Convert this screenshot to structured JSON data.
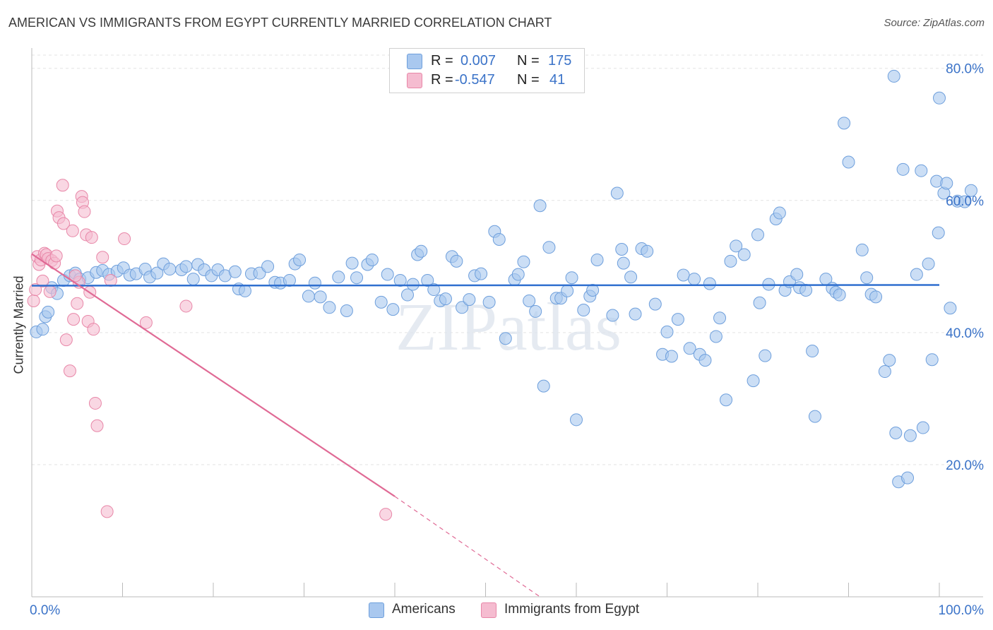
{
  "title": "AMERICAN VS IMMIGRANTS FROM EGYPT CURRENTLY MARRIED CORRELATION CHART",
  "source": "Source: ZipAtlas.com",
  "watermark": "ZIPatlas",
  "colors": {
    "blue_fill": "#a9c8ef",
    "blue_stroke": "#6e9fdc",
    "blue_line": "#2f6fcf",
    "pink_fill": "#f5bcd0",
    "pink_stroke": "#e887a8",
    "pink_line": "#e06a95",
    "tick_label": "#3b73c8",
    "grid": "#e3e3e3"
  },
  "legend": {
    "rows": [
      {
        "r_label": "R =",
        "r_value": "0.007",
        "n_label": "N =",
        "n_value": "175"
      },
      {
        "r_label": "R =",
        "r_value": "-0.547",
        "n_label": "N =",
        "n_value": "41"
      }
    ]
  },
  "bottom_legend": {
    "americans": "Americans",
    "egypt": "Immigrants from Egypt"
  },
  "chart_data": {
    "type": "scatter",
    "title": "AMERICAN VS IMMIGRANTS FROM EGYPT CURRENTLY MARRIED CORRELATION CHART",
    "xlabel": "",
    "ylabel": "Currently Married",
    "xlim": [
      0,
      100
    ],
    "ylim": [
      0,
      82
    ],
    "x_tick_labels": [
      "0.0%",
      "100.0%"
    ],
    "y_ticks": [
      20,
      40,
      60,
      80
    ],
    "y_tick_labels": [
      "20.0%",
      "40.0%",
      "60.0%",
      "80.0%"
    ],
    "grid": true,
    "legend_position": "top-center",
    "series": [
      {
        "name": "Americans",
        "r": 0.007,
        "n": 175,
        "trend": {
          "x": [
            0,
            100
          ],
          "y": [
            47.1,
            47.2
          ]
        },
        "points": [
          [
            0.5,
            40.1
          ],
          [
            1.2,
            40.5
          ],
          [
            1.5,
            42.4
          ],
          [
            1.8,
            43.1
          ],
          [
            2.2,
            46.8
          ],
          [
            2.8,
            45.9
          ],
          [
            3.5,
            47.9
          ],
          [
            4.2,
            48.6
          ],
          [
            4.8,
            49.0
          ],
          [
            5.3,
            48.1
          ],
          [
            6.2,
            48.3
          ],
          [
            7.1,
            49.1
          ],
          [
            7.8,
            49.4
          ],
          [
            8.5,
            48.8
          ],
          [
            9.4,
            49.3
          ],
          [
            10.1,
            49.8
          ],
          [
            10.8,
            48.7
          ],
          [
            11.5,
            48.9
          ],
          [
            12.5,
            49.6
          ],
          [
            13.0,
            48.4
          ],
          [
            13.8,
            49.0
          ],
          [
            14.5,
            50.4
          ],
          [
            15.2,
            49.6
          ],
          [
            16.5,
            49.5
          ],
          [
            17.0,
            50.0
          ],
          [
            17.8,
            48.1
          ],
          [
            18.3,
            50.3
          ],
          [
            19.0,
            49.5
          ],
          [
            19.8,
            48.6
          ],
          [
            20.5,
            49.5
          ],
          [
            21.3,
            48.6
          ],
          [
            22.4,
            49.2
          ],
          [
            22.8,
            46.6
          ],
          [
            23.5,
            46.3
          ],
          [
            24.2,
            48.9
          ],
          [
            25.1,
            49.0
          ],
          [
            26.0,
            50.0
          ],
          [
            26.8,
            47.6
          ],
          [
            27.4,
            47.5
          ],
          [
            28.4,
            47.9
          ],
          [
            29.0,
            50.4
          ],
          [
            29.5,
            51.0
          ],
          [
            30.5,
            45.5
          ],
          [
            31.2,
            47.5
          ],
          [
            31.8,
            45.4
          ],
          [
            32.8,
            43.8
          ],
          [
            33.8,
            48.4
          ],
          [
            34.7,
            43.3
          ],
          [
            35.3,
            50.5
          ],
          [
            35.8,
            48.3
          ],
          [
            37.0,
            50.3
          ],
          [
            37.5,
            51.0
          ],
          [
            38.5,
            44.6
          ],
          [
            39.2,
            48.8
          ],
          [
            39.8,
            43.5
          ],
          [
            40.6,
            47.9
          ],
          [
            41.4,
            45.7
          ],
          [
            42.0,
            47.3
          ],
          [
            42.5,
            51.8
          ],
          [
            42.9,
            52.3
          ],
          [
            43.6,
            47.9
          ],
          [
            44.3,
            46.5
          ],
          [
            45.0,
            44.8
          ],
          [
            45.6,
            45.1
          ],
          [
            46.3,
            51.5
          ],
          [
            46.8,
            50.8
          ],
          [
            47.4,
            43.8
          ],
          [
            48.2,
            45.0
          ],
          [
            48.8,
            48.6
          ],
          [
            49.5,
            48.9
          ],
          [
            50.4,
            44.6
          ],
          [
            51.0,
            55.3
          ],
          [
            51.5,
            54.1
          ],
          [
            52.2,
            39.1
          ],
          [
            53.2,
            48.0
          ],
          [
            53.6,
            48.8
          ],
          [
            54.2,
            50.7
          ],
          [
            54.8,
            44.8
          ],
          [
            55.5,
            43.2
          ],
          [
            56.0,
            59.2
          ],
          [
            56.4,
            31.9
          ],
          [
            57.0,
            52.9
          ],
          [
            57.8,
            45.2
          ],
          [
            58.3,
            45.2
          ],
          [
            59.0,
            46.3
          ],
          [
            59.5,
            48.3
          ],
          [
            60.0,
            26.8
          ],
          [
            60.8,
            43.4
          ],
          [
            61.5,
            45.5
          ],
          [
            61.8,
            46.4
          ],
          [
            62.3,
            51.0
          ],
          [
            64.0,
            42.6
          ],
          [
            64.5,
            61.1
          ],
          [
            65.0,
            52.6
          ],
          [
            65.2,
            50.5
          ],
          [
            66.0,
            48.4
          ],
          [
            66.5,
            42.8
          ],
          [
            67.2,
            52.7
          ],
          [
            67.8,
            52.3
          ],
          [
            68.7,
            44.3
          ],
          [
            69.5,
            36.7
          ],
          [
            70.0,
            40.1
          ],
          [
            70.5,
            36.4
          ],
          [
            71.2,
            42.0
          ],
          [
            71.8,
            48.7
          ],
          [
            72.5,
            37.6
          ],
          [
            73.0,
            48.1
          ],
          [
            73.6,
            36.7
          ],
          [
            74.2,
            35.8
          ],
          [
            74.7,
            47.4
          ],
          [
            75.4,
            39.4
          ],
          [
            75.8,
            42.2
          ],
          [
            76.5,
            29.8
          ],
          [
            77.0,
            50.8
          ],
          [
            77.6,
            53.1
          ],
          [
            78.5,
            51.8
          ],
          [
            79.5,
            32.7
          ],
          [
            80.0,
            54.8
          ],
          [
            80.2,
            44.5
          ],
          [
            80.8,
            36.5
          ],
          [
            81.2,
            47.3
          ],
          [
            82.0,
            57.2
          ],
          [
            82.4,
            58.1
          ],
          [
            83.0,
            46.4
          ],
          [
            83.5,
            47.7
          ],
          [
            84.3,
            48.8
          ],
          [
            84.6,
            46.8
          ],
          [
            85.3,
            46.4
          ],
          [
            86.0,
            37.2
          ],
          [
            86.3,
            27.3
          ],
          [
            87.5,
            48.1
          ],
          [
            88.2,
            46.7
          ],
          [
            88.6,
            46.1
          ],
          [
            89.0,
            45.7
          ],
          [
            89.5,
            71.7
          ],
          [
            90.0,
            65.8
          ],
          [
            91.5,
            52.5
          ],
          [
            92.0,
            48.3
          ],
          [
            92.5,
            45.8
          ],
          [
            93.0,
            45.4
          ],
          [
            94.0,
            34.1
          ],
          [
            94.5,
            35.8
          ],
          [
            95.2,
            24.8
          ],
          [
            95.5,
            17.4
          ],
          [
            96.0,
            64.7
          ],
          [
            96.5,
            18.0
          ],
          [
            96.8,
            24.4
          ],
          [
            97.5,
            48.8
          ],
          [
            98.0,
            64.5
          ],
          [
            98.2,
            25.6
          ],
          [
            98.8,
            50.4
          ],
          [
            99.2,
            35.9
          ],
          [
            99.7,
            62.9
          ],
          [
            99.9,
            55.1
          ],
          [
            100.0,
            75.5
          ],
          [
            100.5,
            61.1
          ],
          [
            100.8,
            62.6
          ],
          [
            101.2,
            43.7
          ],
          [
            102.0,
            59.9
          ],
          [
            102.8,
            59.8
          ],
          [
            103.5,
            61.5
          ],
          [
            95.0,
            78.8
          ]
        ]
      },
      {
        "name": "Immigrants from Egypt",
        "r": -0.547,
        "n": 41,
        "trend": {
          "x": [
            0,
            40
          ],
          "y": [
            51.9,
            15.2
          ]
        },
        "trend_dashed": {
          "x": [
            40,
            56
          ],
          "y": [
            15.2,
            0
          ]
        },
        "points": [
          [
            0.2,
            44.8
          ],
          [
            0.4,
            46.5
          ],
          [
            0.6,
            51.5
          ],
          [
            0.8,
            50.3
          ],
          [
            1.0,
            51.0
          ],
          [
            1.2,
            47.8
          ],
          [
            1.4,
            52.0
          ],
          [
            1.6,
            51.8
          ],
          [
            1.8,
            51.2
          ],
          [
            2.0,
            46.2
          ],
          [
            2.2,
            50.9
          ],
          [
            2.5,
            50.5
          ],
          [
            2.7,
            51.6
          ],
          [
            2.8,
            58.4
          ],
          [
            3.0,
            57.4
          ],
          [
            3.4,
            62.3
          ],
          [
            3.5,
            56.5
          ],
          [
            3.8,
            38.9
          ],
          [
            4.2,
            34.2
          ],
          [
            4.5,
            55.4
          ],
          [
            4.6,
            42.0
          ],
          [
            5.0,
            44.4
          ],
          [
            5.2,
            47.6
          ],
          [
            5.5,
            60.6
          ],
          [
            5.6,
            59.7
          ],
          [
            5.8,
            58.3
          ],
          [
            6.0,
            54.8
          ],
          [
            6.2,
            41.7
          ],
          [
            6.4,
            46.1
          ],
          [
            6.6,
            54.4
          ],
          [
            6.8,
            40.5
          ],
          [
            7.0,
            29.3
          ],
          [
            7.2,
            25.9
          ],
          [
            7.8,
            51.4
          ],
          [
            8.3,
            12.9
          ],
          [
            8.7,
            47.9
          ],
          [
            10.2,
            54.2
          ],
          [
            12.6,
            41.5
          ],
          [
            17.0,
            44.0
          ],
          [
            39.0,
            12.5
          ],
          [
            4.8,
            48.6
          ]
        ]
      }
    ]
  }
}
